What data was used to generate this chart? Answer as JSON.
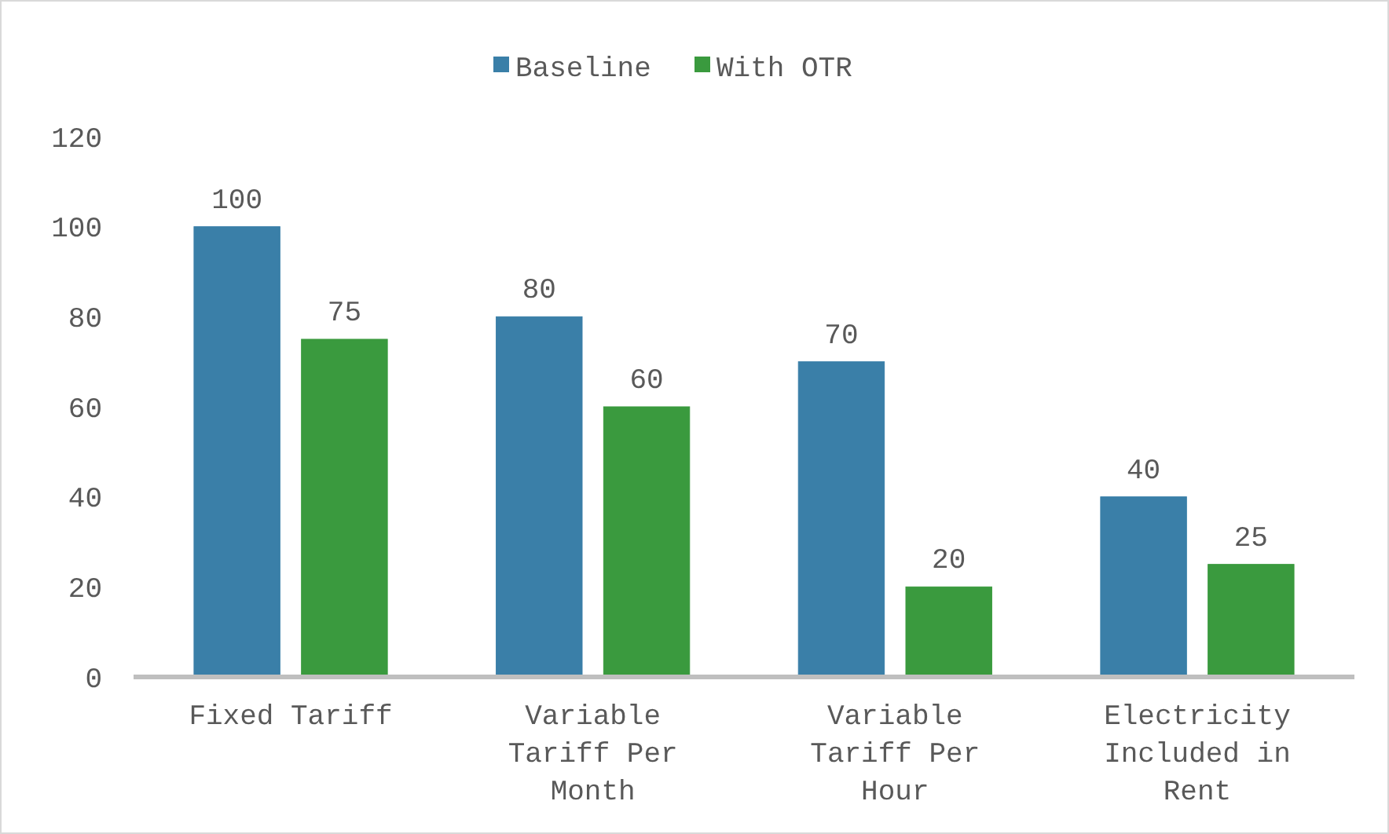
{
  "chart_data": {
    "type": "bar",
    "categories": [
      "Fixed Tariff",
      "Variable Tariff Per Month",
      "Variable Tariff Per Hour",
      "Electricity Included in Rent"
    ],
    "series": [
      {
        "name": "Baseline",
        "color": "#3a7fa8",
        "values": [
          100,
          80,
          70,
          40
        ]
      },
      {
        "name": "With OTR",
        "color": "#3a9a3e",
        "values": [
          75,
          60,
          20,
          25
        ]
      }
    ],
    "ylim": [
      0,
      120
    ],
    "yticks": [
      0,
      20,
      40,
      60,
      80,
      100,
      120
    ],
    "data_labels": true,
    "legend": "top",
    "grid": false
  }
}
